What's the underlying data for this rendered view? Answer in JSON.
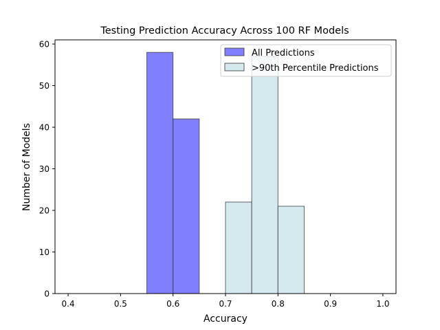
{
  "chart_data": {
    "type": "bar",
    "title": "Testing Prediction Accuracy Across 100 RF Models",
    "xlabel": "Accuracy",
    "ylabel": "Number of Models",
    "xlim": [
      0.375,
      1.025
    ],
    "ylim": [
      0,
      61
    ],
    "xticks": [
      "0.4",
      "0.5",
      "0.6",
      "0.7",
      "0.8",
      "0.9",
      "1.0"
    ],
    "yticks": [
      "0",
      "10",
      "20",
      "30",
      "40",
      "50",
      "60"
    ],
    "grid": false,
    "legend_position": "top-right",
    "series": [
      {
        "name": "All Predictions",
        "color": "#8080ff",
        "bins": [
          {
            "x0": 0.55,
            "x1": 0.6,
            "count": 58
          },
          {
            "x0": 0.6,
            "x1": 0.65,
            "count": 42
          }
        ]
      },
      {
        "name": ">90th Percentile Predictions",
        "color": "#d4eaef",
        "bins": [
          {
            "x0": 0.7,
            "x1": 0.75,
            "count": 22
          },
          {
            "x0": 0.75,
            "x1": 0.8,
            "count": 57
          },
          {
            "x0": 0.8,
            "x1": 0.85,
            "count": 21
          }
        ]
      }
    ]
  }
}
